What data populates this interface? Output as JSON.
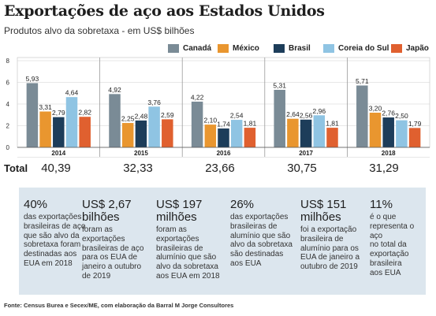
{
  "header": {
    "title": "Exportações de aço aos Estados Unidos",
    "subtitle": "Produtos alvo da sobretaxa - em US$ bilhões"
  },
  "chart_data": {
    "type": "bar",
    "categories": [
      "2014",
      "2015",
      "2016",
      "2017",
      "2018"
    ],
    "series": [
      {
        "name": "Canadá",
        "color": "#7a8b96",
        "values": [
          5.93,
          4.92,
          4.22,
          5.31,
          5.71
        ]
      },
      {
        "name": "México",
        "color": "#e9962f",
        "values": [
          3.31,
          2.25,
          2.1,
          2.64,
          3.2
        ]
      },
      {
        "name": "Brasil",
        "color": "#1d3d5a",
        "values": [
          2.79,
          2.48,
          1.74,
          2.56,
          2.76
        ]
      },
      {
        "name": "Coreia do Sul",
        "color": "#8fc4e3",
        "values": [
          4.64,
          3.76,
          2.54,
          2.96,
          2.5
        ]
      },
      {
        "name": "Japão",
        "color": "#e0602f",
        "values": [
          2.82,
          2.59,
          1.81,
          1.81,
          1.79
        ]
      }
    ],
    "value_labels": [
      [
        "5,93",
        "3,31",
        "2,79",
        "4,64",
        "2,82"
      ],
      [
        "4,92",
        "2,25",
        "2,48",
        "3,76",
        "2,59"
      ],
      [
        "4,22",
        "2,10",
        "1,74",
        "2,54",
        "1,81"
      ],
      [
        "5,31",
        "2,64",
        "2,56",
        "2,96",
        "1,81"
      ],
      [
        "5,71",
        "3,20",
        "2,76",
        "2,50",
        "1,79"
      ]
    ],
    "yticks": [
      "0",
      "2",
      "4",
      "6",
      "8"
    ],
    "ylim": [
      0,
      8
    ],
    "grid": true,
    "legend": "top-right",
    "total_label": "Total",
    "totals": [
      "40,39",
      "32,33",
      "23,66",
      "30,75",
      "31,29"
    ]
  },
  "facts": [
    {
      "head": "40%",
      "body": "das exportações\nbrasileiras de aço\nque são alvo da\nsobretaxa foram\ndestinadas aos\nEUA em 2018"
    },
    {
      "head": "US$ 2,67\nbilhões",
      "body": "foram as\nexportações\nbrasileiras de aço\npara os EUA de\njaneiro a outubro\nde 2019"
    },
    {
      "head": "US$ 197\nmilhões",
      "body": "foram as\nexportações\nbrasileiras de\nalumínio que são\nalvo da sobretaxa\naos EUA em 2018"
    },
    {
      "head": "26%",
      "body": "das exportações\nbrasileiras de\nalumínio que são\nalvo da sobretaxa\nsão destinadas\naos EUA"
    },
    {
      "head": "US$ 151\nmilhões",
      "body": "foi a exportação\nbrasileira de\nalumínio para os\nEUA de janeiro a\noutubro de 2019"
    },
    {
      "head": "11%",
      "body": "é o que\nrepresenta o aço\nno total da\nexportação\nbrasileira\naos EUA"
    }
  ],
  "source": "Fonte: Census Burea e Secex/ME, com elaboração da Barral M Jorge Consultores"
}
